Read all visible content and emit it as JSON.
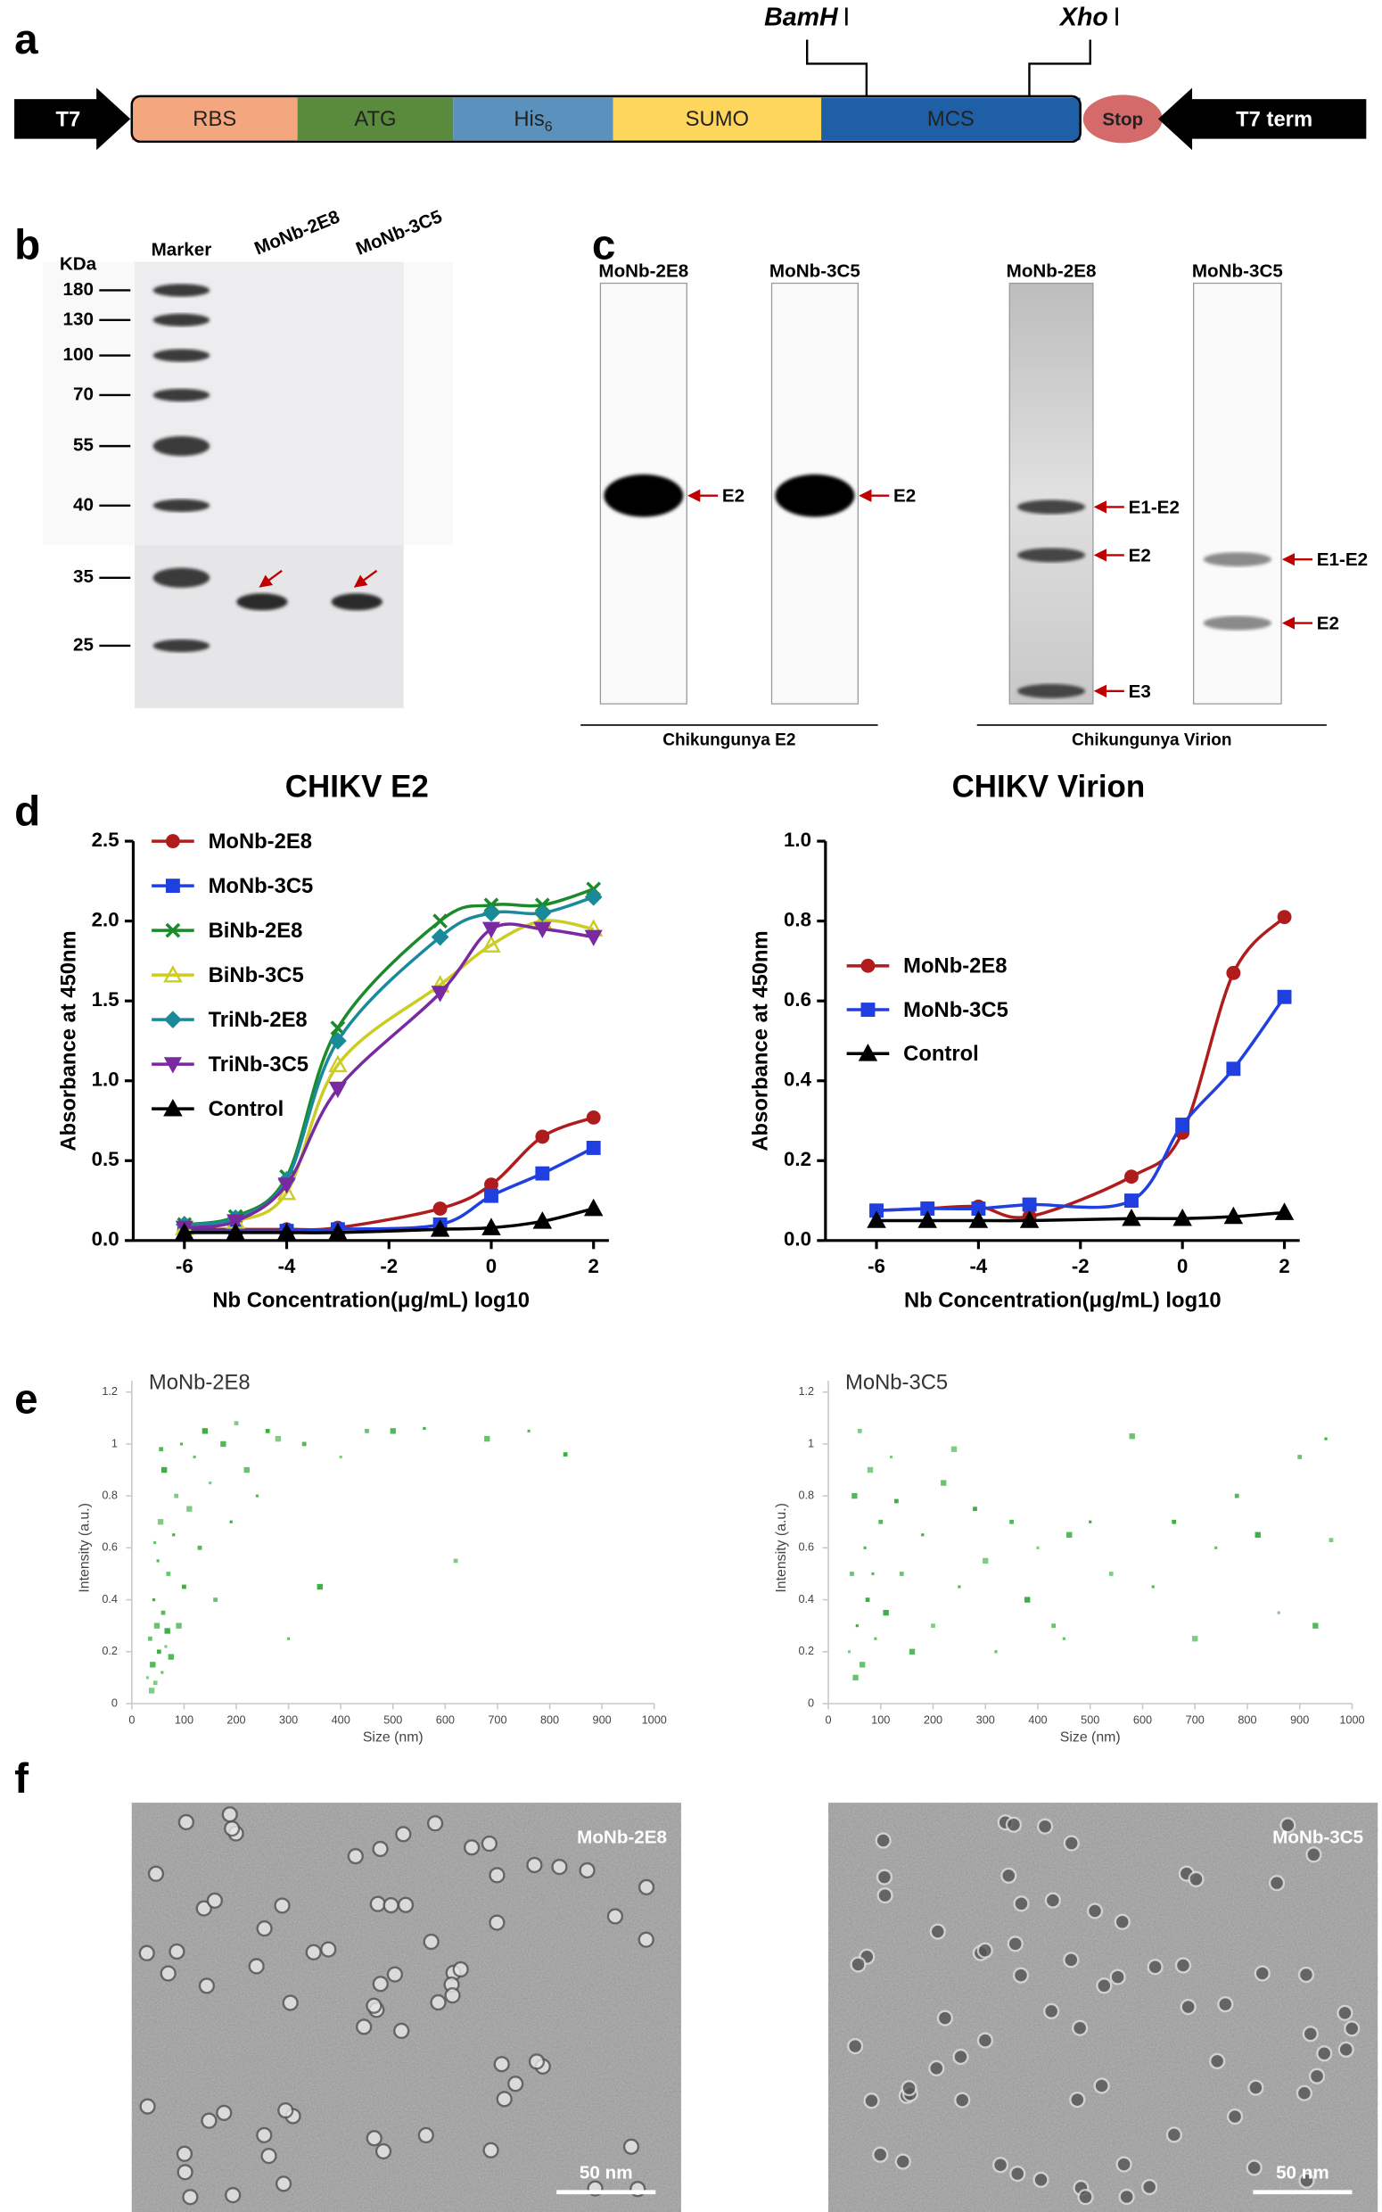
{
  "panel_labels": [
    "a",
    "b",
    "c",
    "d",
    "e",
    "f"
  ],
  "construct": {
    "promoter": "T7",
    "segments": [
      {
        "label": "RBS"
      },
      {
        "label": "ATG"
      },
      {
        "label": "His",
        "subscript": "6"
      },
      {
        "label": "SUMO"
      },
      {
        "label": "MCS"
      }
    ],
    "stop": "Stop",
    "terminator": "T7 term",
    "sites": [
      {
        "name": "BamH",
        "suffix": "I"
      },
      {
        "name": "Xho",
        "suffix": "I"
      }
    ]
  },
  "gel": {
    "unit": "KDa",
    "lanes": [
      "Marker",
      "MoNb-2E8",
      "MoNb-3C5"
    ],
    "markers": [
      180,
      130,
      100,
      70,
      55,
      40,
      35,
      25
    ]
  },
  "blots": [
    {
      "caption": "Chikungunya E2",
      "strips": [
        {
          "title": "MoNb-2E8",
          "bands": [
            "E2"
          ]
        },
        {
          "title": "MoNb-3C5",
          "bands": [
            "E2"
          ]
        }
      ]
    },
    {
      "caption": "Chikungunya Virion",
      "strips": [
        {
          "title": "MoNb-2E8",
          "bands": [
            "E1-E2",
            "E2",
            "E3"
          ]
        },
        {
          "title": "MoNb-3C5",
          "bands": [
            "E1-E2",
            "E2"
          ]
        }
      ]
    }
  ],
  "chart_data": [
    {
      "type": "line",
      "title": "CHIKV E2",
      "x_label": "Nb Concentration(μg/mL) log10",
      "y_label": "Absorbance at 450nm",
      "x": [
        -6,
        -5,
        -4,
        -3,
        -1,
        0,
        1,
        2
      ],
      "xlim": [
        -7,
        2.3
      ],
      "xticks": [
        -6,
        -4,
        -2,
        0,
        2
      ],
      "ylim": [
        0,
        2.5
      ],
      "yticks": [
        {
          "value": 0,
          "label": "0.0"
        },
        {
          "value": 0.5,
          "label": "0.5"
        },
        {
          "value": 1,
          "label": "1.0"
        },
        {
          "value": 1.5,
          "label": "1.5"
        },
        {
          "value": 2,
          "label": "2.0"
        },
        {
          "value": 2.5,
          "label": "2.5"
        }
      ],
      "legend": "upper left",
      "series": [
        {
          "name": "MoNb-2E8",
          "color": "#b01c1c",
          "marker": "circle",
          "values": [
            0.07,
            0.07,
            0.07,
            0.08,
            0.2,
            0.35,
            0.65,
            0.77
          ]
        },
        {
          "name": "MoNb-3C5",
          "color": "#1f3fe0",
          "marker": "square",
          "values": [
            0.06,
            0.06,
            0.06,
            0.07,
            0.1,
            0.28,
            0.42,
            0.58
          ]
        },
        {
          "name": "BiNb-2E8",
          "color": "#1a8a2a",
          "marker": "x",
          "values": [
            0.1,
            0.15,
            0.4,
            1.33,
            2.0,
            2.1,
            2.1,
            2.2
          ]
        },
        {
          "name": "BiNb-3C5",
          "color": "#cccc22",
          "marker": "triangle",
          "values": [
            0.08,
            0.12,
            0.3,
            1.1,
            1.6,
            1.85,
            2.0,
            1.95
          ]
        },
        {
          "name": "TriNb-2E8",
          "color": "#1a8a9a",
          "marker": "diamond",
          "values": [
            0.1,
            0.14,
            0.38,
            1.25,
            1.9,
            2.05,
            2.05,
            2.15
          ]
        },
        {
          "name": "TriNb-3C5",
          "color": "#7a2aa0",
          "marker": "triangle-down",
          "values": [
            0.08,
            0.12,
            0.35,
            0.95,
            1.55,
            1.95,
            1.95,
            1.9
          ]
        },
        {
          "name": "Control",
          "color": "#000000",
          "marker": "triangle",
          "values": [
            0.05,
            0.05,
            0.05,
            0.05,
            0.07,
            0.08,
            0.12,
            0.2
          ]
        }
      ]
    },
    {
      "type": "line",
      "title": "CHIKV Virion",
      "x_label": "Nb Concentration(μg/mL) log10",
      "y_label": "Absorbance at 450nm",
      "x": [
        -6,
        -5,
        -4,
        -3,
        -1,
        0,
        1,
        2
      ],
      "xlim": [
        -7,
        2.3
      ],
      "xticks": [
        -6,
        -4,
        -2,
        0,
        2
      ],
      "ylim": [
        0,
        1
      ],
      "yticks": [
        {
          "value": 0,
          "label": "0.0"
        },
        0.2,
        0.4,
        0.6,
        0.8,
        {
          "value": 1,
          "label": "1.0"
        }
      ],
      "legend": "center left",
      "series": [
        {
          "name": "MoNb-2E8",
          "color": "#b01c1c",
          "marker": "circle",
          "values": [
            0.075,
            0.08,
            0.085,
            0.06,
            0.16,
            0.27,
            0.67,
            0.81
          ]
        },
        {
          "name": "MoNb-3C5",
          "color": "#1f3fe0",
          "marker": "square",
          "values": [
            0.075,
            0.08,
            0.08,
            0.09,
            0.1,
            0.29,
            0.43,
            0.61
          ]
        },
        {
          "name": "Control",
          "color": "#000000",
          "marker": "triangle",
          "values": [
            0.05,
            0.05,
            0.05,
            0.05,
            0.055,
            0.055,
            0.06,
            0.07
          ]
        }
      ]
    },
    {
      "type": "scatter",
      "title": "MoNb-2E8",
      "x_label": "Size (nm)",
      "y_label": "Intensity (a.u.)",
      "xlim": [
        0,
        1000
      ],
      "xticks": [
        0,
        100,
        200,
        300,
        400,
        500,
        600,
        700,
        800,
        900,
        1000
      ],
      "ylim": [
        0,
        1.2
      ],
      "yticks": [
        0,
        0.2,
        0.4,
        0.6,
        0.8,
        1,
        1.2
      ],
      "series": [
        {
          "color": "#3cb043",
          "x": [
            30,
            35,
            40,
            42,
            45,
            48,
            50,
            52,
            55,
            58,
            60,
            62,
            65,
            70,
            75,
            80,
            85,
            90,
            95,
            100,
            110,
            120,
            130,
            140,
            150,
            160,
            175,
            190,
            200,
            220,
            240,
            260,
            280,
            300,
            330,
            360,
            400,
            450,
            500,
            560,
            620,
            680,
            760,
            830,
            38,
            44,
            56,
            68
          ],
          "values": [
            0.1,
            0.25,
            0.15,
            0.4,
            0.08,
            0.3,
            0.55,
            0.2,
            0.7,
            0.12,
            0.35,
            0.9,
            0.22,
            0.5,
            0.18,
            0.65,
            0.8,
            0.3,
            1.0,
            0.45,
            0.75,
            0.95,
            0.6,
            1.05,
            0.85,
            0.4,
            1.0,
            0.7,
            1.08,
            0.9,
            0.8,
            1.05,
            1.02,
            0.25,
            1.0,
            0.45,
            0.95,
            1.05,
            1.05,
            1.06,
            0.55,
            1.02,
            1.05,
            0.96,
            0.05,
            0.62,
            0.98,
            0.28
          ]
        }
      ]
    },
    {
      "type": "scatter",
      "title": "MoNb-3C5",
      "x_label": "Size (nm)",
      "y_label": "Intensity (a.u.)",
      "xlim": [
        0,
        1000
      ],
      "xticks": [
        0,
        100,
        200,
        300,
        400,
        500,
        600,
        700,
        800,
        900,
        1000
      ],
      "ylim": [
        0,
        1.2
      ],
      "yticks": [
        0,
        0.2,
        0.4,
        0.6,
        0.8,
        1,
        1.2
      ],
      "series": [
        {
          "color": "#3cb043",
          "x": [
            40,
            45,
            50,
            55,
            60,
            65,
            70,
            75,
            80,
            90,
            100,
            110,
            120,
            140,
            160,
            180,
            200,
            220,
            250,
            280,
            300,
            320,
            350,
            380,
            400,
            430,
            460,
            500,
            540,
            580,
            620,
            660,
            700,
            740,
            780,
            820,
            860,
            900,
            930,
            950,
            960,
            52,
            85,
            130,
            240,
            450
          ],
          "values": [
            0.2,
            0.5,
            0.8,
            0.3,
            1.05,
            0.15,
            0.6,
            0.4,
            0.9,
            0.25,
            0.7,
            0.35,
            0.95,
            0.5,
            0.2,
            0.65,
            0.3,
            0.85,
            0.45,
            0.75,
            0.55,
            0.2,
            0.7,
            0.4,
            0.6,
            0.3,
            0.65,
            0.7,
            0.5,
            1.03,
            0.45,
            0.7,
            0.25,
            0.6,
            0.8,
            0.65,
            0.35,
            0.95,
            0.3,
            1.02,
            0.63,
            0.1,
            0.5,
            0.78,
            0.98,
            0.25
          ]
        }
      ]
    }
  ],
  "tem": [
    {
      "label": "MoNb-2E8",
      "scale_bar": "50 nm"
    },
    {
      "label": "MoNb-3C5",
      "scale_bar": "50 nm"
    }
  ]
}
